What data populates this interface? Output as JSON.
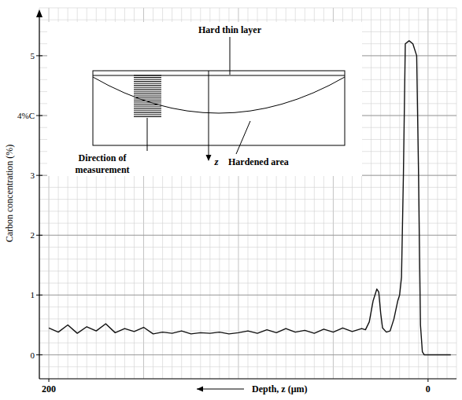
{
  "chart_data": {
    "type": "line",
    "xlabel": "Depth, z (μm)",
    "ylabel": "Carbon concentration (%)",
    "x": [
      200,
      195,
      190,
      185,
      180,
      175,
      170,
      165,
      160,
      155,
      150,
      145,
      140,
      135,
      130,
      125,
      120,
      115,
      110,
      105,
      100,
      95,
      90,
      85,
      80,
      75,
      70,
      65,
      60,
      55,
      50,
      45,
      40,
      35,
      33,
      31,
      29,
      27,
      26,
      25,
      24,
      22,
      20,
      18,
      16,
      15,
      14,
      13,
      12,
      10,
      8,
      6,
      5,
      4,
      3,
      2,
      -12
    ],
    "values": [
      0.45,
      0.38,
      0.5,
      0.36,
      0.47,
      0.4,
      0.52,
      0.37,
      0.44,
      0.39,
      0.46,
      0.35,
      0.38,
      0.36,
      0.4,
      0.35,
      0.37,
      0.36,
      0.38,
      0.35,
      0.37,
      0.4,
      0.36,
      0.42,
      0.37,
      0.44,
      0.38,
      0.41,
      0.36,
      0.43,
      0.38,
      0.45,
      0.39,
      0.44,
      0.42,
      0.55,
      0.9,
      1.1,
      1.05,
      0.7,
      0.45,
      0.38,
      0.4,
      0.6,
      0.9,
      1.0,
      1.3,
      3.0,
      5.2,
      5.25,
      5.2,
      5.0,
      3.0,
      0.5,
      0.05,
      0.0,
      0.0
    ],
    "color": "#111111",
    "xlim": [
      205,
      -15
    ],
    "ylim": [
      -0.4,
      5.8
    ],
    "xticks": [
      200,
      0
    ],
    "yticks": [
      0,
      1,
      2,
      3,
      {
        "value": 4,
        "label": "4%C"
      },
      5
    ],
    "grid": true,
    "annotations": [
      "Hard thin layer",
      "Direction of measurement",
      "z",
      "Hardened area"
    ]
  }
}
